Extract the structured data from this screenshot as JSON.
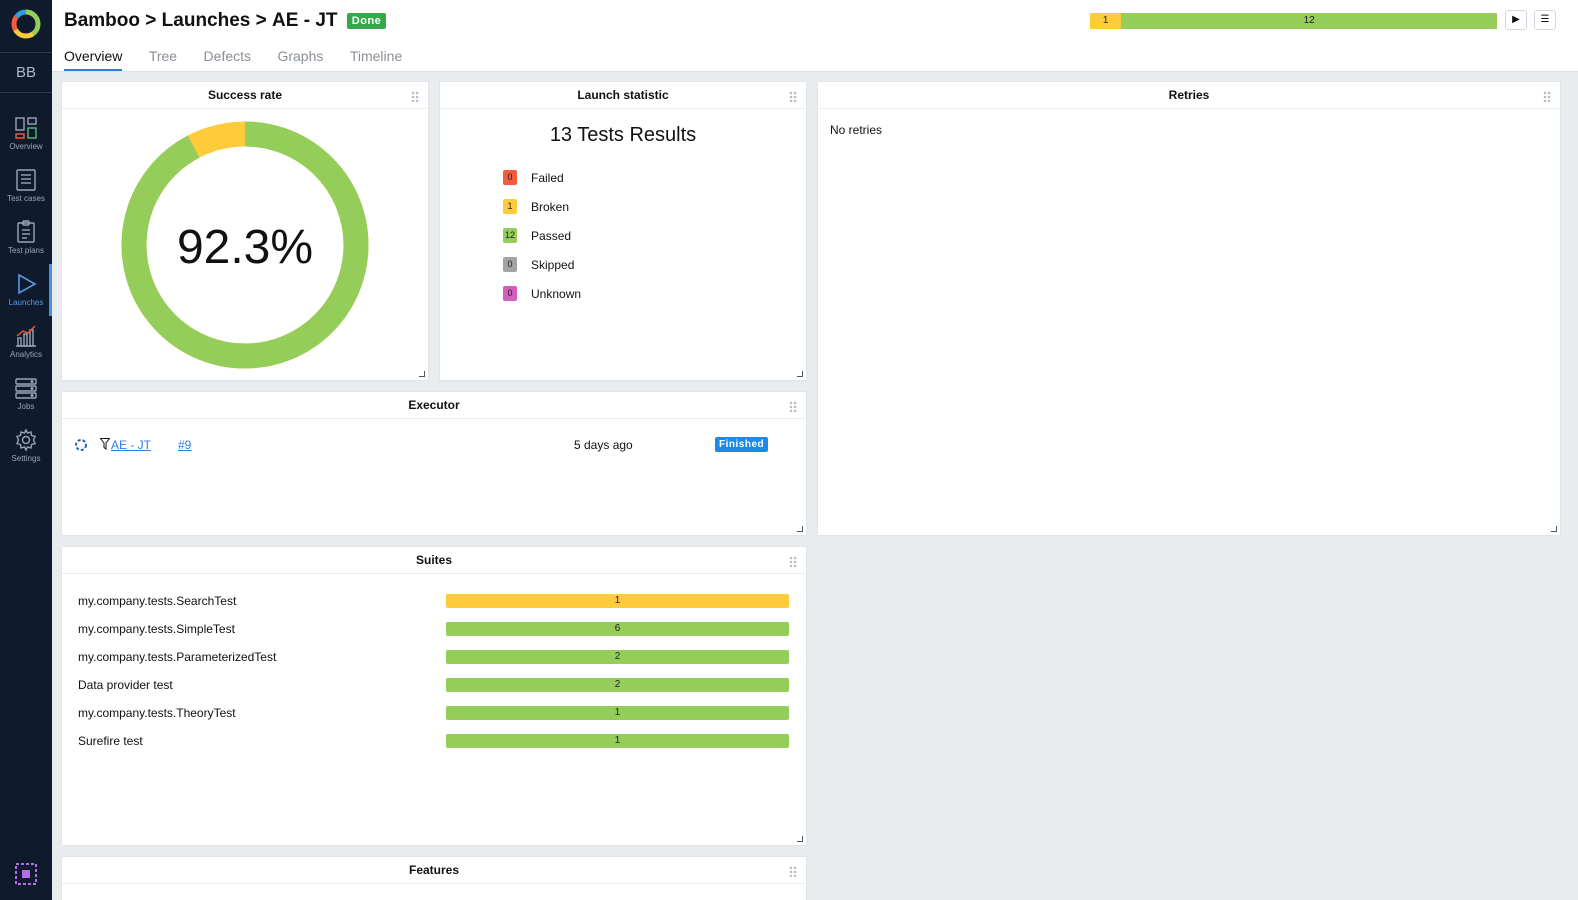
{
  "colors": {
    "passed": "#95cd5b",
    "broken": "#fecb3a",
    "failed": "#f45c3a",
    "skipped": "#a3a3a3",
    "unknown": "#d35ebe",
    "accent": "#2f7de1"
  },
  "sidebar": {
    "user": "BB",
    "items": [
      {
        "label": "Overview",
        "icon": "overview-icon"
      },
      {
        "label": "Test cases",
        "icon": "test-cases-icon"
      },
      {
        "label": "Test plans",
        "icon": "test-plans-icon"
      },
      {
        "label": "Launches",
        "icon": "launches-icon"
      },
      {
        "label": "Analytics",
        "icon": "analytics-icon"
      },
      {
        "label": "Jobs",
        "icon": "jobs-icon"
      },
      {
        "label": "Settings",
        "icon": "gear-icon"
      }
    ]
  },
  "header": {
    "crumb1": "Bamboo",
    "sep": ">",
    "crumb2": "Launches",
    "crumb3": "AE - JT",
    "status": "Done",
    "tabs": [
      "Overview",
      "Tree",
      "Defects",
      "Graphs",
      "Timeline"
    ],
    "bar": [
      {
        "label": "1",
        "value": 1,
        "status": "broken"
      },
      {
        "label": "12",
        "value": 12,
        "status": "passed"
      }
    ]
  },
  "widgets": {
    "success_rate": {
      "title": "Success rate",
      "value": "92.3%",
      "fraction": 0.923
    },
    "launch_statistic": {
      "title": "Launch statistic",
      "total": "13 Tests Results",
      "rows": [
        {
          "count": "0",
          "label": "Failed",
          "status": "failed"
        },
        {
          "count": "1",
          "label": "Broken",
          "status": "broken"
        },
        {
          "count": "12",
          "label": "Passed",
          "status": "passed"
        },
        {
          "count": "0",
          "label": "Skipped",
          "status": "skipped"
        },
        {
          "count": "0",
          "label": "Unknown",
          "status": "unknown"
        }
      ]
    },
    "retries": {
      "title": "Retries",
      "empty": "No retries"
    },
    "executor": {
      "title": "Executor",
      "job": "AE - JT",
      "build": "#9",
      "time": "5 days ago",
      "status": "Finished"
    },
    "suites": {
      "title": "Suites",
      "rows": [
        {
          "name": "my.company.tests.SearchTest",
          "count": "1",
          "status": "broken"
        },
        {
          "name": "my.company.tests.SimpleTest",
          "count": "6",
          "status": "passed"
        },
        {
          "name": "my.company.tests.ParameterizedTest",
          "count": "2",
          "status": "passed"
        },
        {
          "name": "Data provider test",
          "count": "2",
          "status": "passed"
        },
        {
          "name": "my.company.tests.TheoryTest",
          "count": "1",
          "status": "passed"
        },
        {
          "name": "Surefire test",
          "count": "1",
          "status": "passed"
        }
      ]
    },
    "features": {
      "title": "Features"
    }
  }
}
